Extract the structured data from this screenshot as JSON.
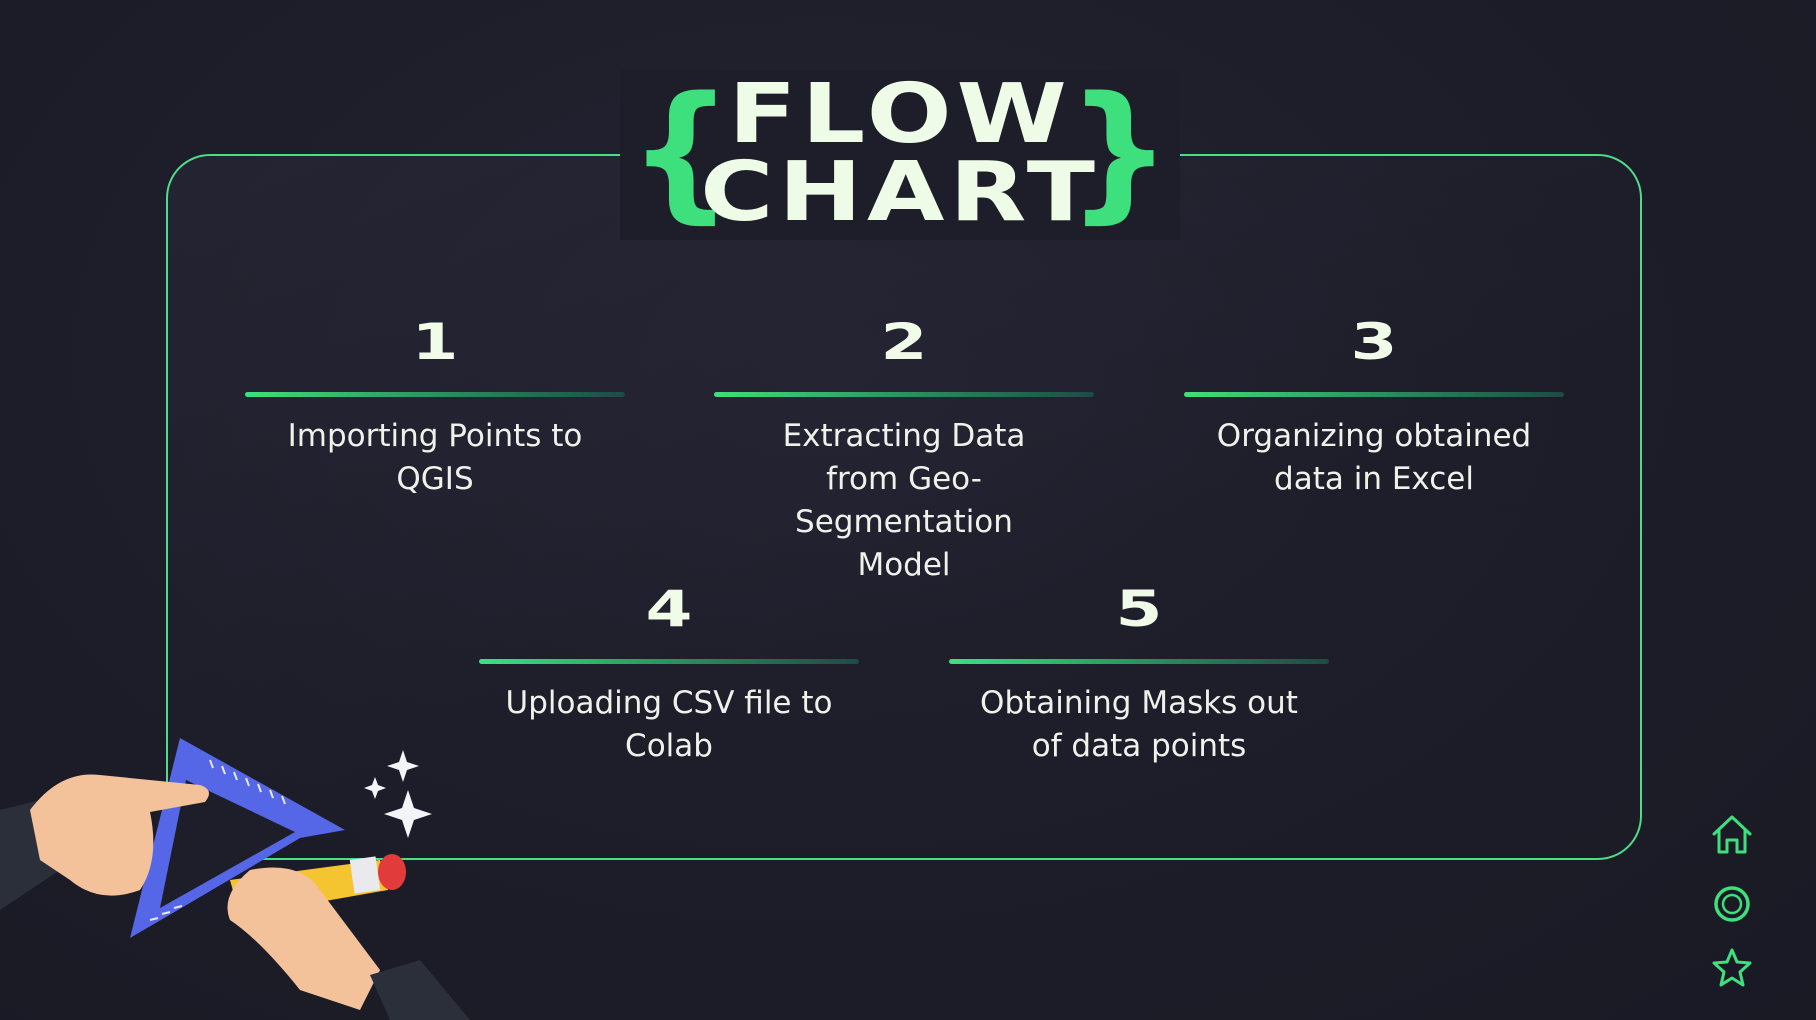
{
  "title": {
    "line1": "FLOW",
    "line2": "CHART",
    "brace_left": "{",
    "brace_right": "}"
  },
  "steps": [
    {
      "number": "1",
      "text": "Importing Points to QGIS"
    },
    {
      "number": "2",
      "text": "Extracting Data from Geo-Segmentation Model"
    },
    {
      "number": "3",
      "text": "Organizing obtained data in Excel"
    },
    {
      "number": "4",
      "text": "Uploading CSV file to Colab"
    },
    {
      "number": "5",
      "text": "Obtaining Masks out of data points"
    }
  ],
  "nav": {
    "icons": [
      "home-icon",
      "circle-icon",
      "star-icon"
    ],
    "accent": "#3ee07d"
  },
  "colors": {
    "background": "#1c1c28",
    "accent": "#3ee07d",
    "title": "#eefbe6",
    "text": "#f1f1ec"
  }
}
